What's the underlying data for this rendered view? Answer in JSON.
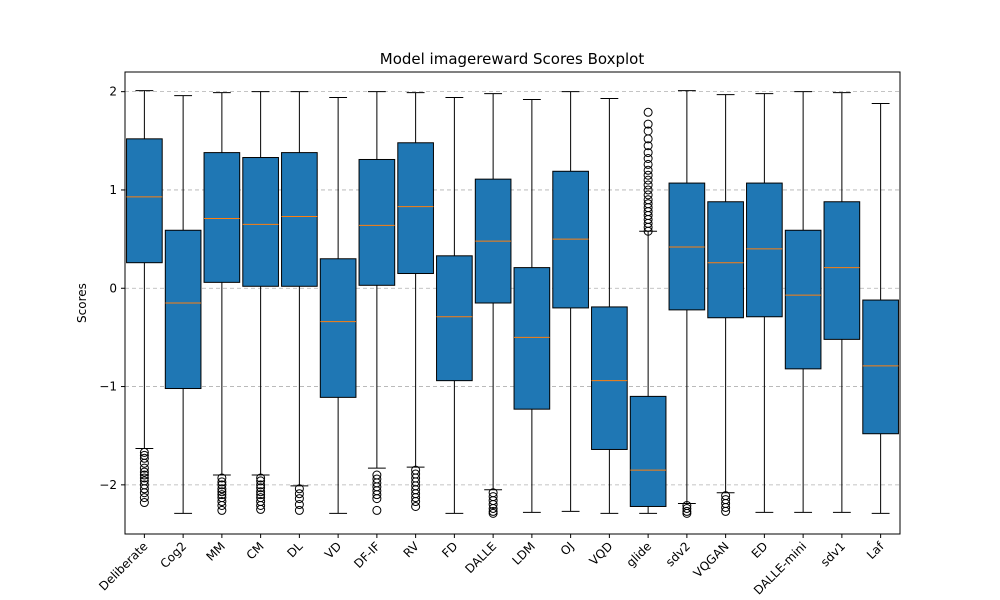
{
  "chart_data": {
    "type": "boxplot",
    "title": "Model imagereward Scores Boxplot",
    "xlabel": "",
    "ylabel": "Scores",
    "ylim": [
      -2.5,
      2.2
    ],
    "yticks": [
      -2,
      -1,
      0,
      1,
      2
    ],
    "grid": "y-dashed",
    "colors": {
      "box_fill": "#1f77b4",
      "median": "#ff7f0e",
      "grid": "#b0b0b0"
    },
    "categories": [
      "Deliberate",
      "Cog2",
      "MM",
      "CM",
      "DL",
      "VD",
      "DF-IF",
      "RV",
      "FD",
      "DALLE",
      "LDM",
      "OJ",
      "VQD",
      "glide",
      "sdv2",
      "VQGAN",
      "ED",
      "DALLE-mini",
      "sdv1",
      "Laf"
    ],
    "boxes": [
      {
        "name": "Deliberate",
        "whislo": -1.63,
        "q1": 0.26,
        "median": 0.93,
        "q3": 1.52,
        "whishi": 2.01,
        "fliers": [
          -1.67,
          -1.7,
          -1.73,
          -1.78,
          -1.83,
          -1.87,
          -1.9,
          -1.93,
          -1.96,
          -2.0,
          -2.04,
          -2.08,
          -2.13,
          -2.18
        ]
      },
      {
        "name": "Cog2",
        "whislo": -2.29,
        "q1": -1.02,
        "median": -0.15,
        "q3": 0.59,
        "whishi": 1.96,
        "fliers": []
      },
      {
        "name": "MM",
        "whislo": -1.9,
        "q1": 0.06,
        "median": 0.71,
        "q3": 1.38,
        "whishi": 1.99,
        "fliers": [
          -1.93,
          -1.97,
          -2.0,
          -2.04,
          -2.07,
          -2.1,
          -2.13,
          -2.17,
          -2.21,
          -2.26
        ]
      },
      {
        "name": "CM",
        "whislo": -1.9,
        "q1": 0.02,
        "median": 0.65,
        "q3": 1.33,
        "whishi": 2.0,
        "fliers": [
          -1.93,
          -1.96,
          -2.0,
          -2.03,
          -2.07,
          -2.1,
          -2.13,
          -2.17,
          -2.21,
          -2.25
        ]
      },
      {
        "name": "DL",
        "whislo": -2.01,
        "q1": 0.02,
        "median": 0.73,
        "q3": 1.38,
        "whishi": 2.0,
        "fliers": [
          -2.04,
          -2.09,
          -2.14,
          -2.2,
          -2.26
        ]
      },
      {
        "name": "VD",
        "whislo": -2.29,
        "q1": -1.11,
        "median": -0.34,
        "q3": 0.3,
        "whishi": 1.94,
        "fliers": []
      },
      {
        "name": "DF-IF",
        "whislo": -1.83,
        "q1": 0.03,
        "median": 0.64,
        "q3": 1.31,
        "whishi": 2.0,
        "fliers": [
          -1.9,
          -1.94,
          -1.98,
          -2.02,
          -2.06,
          -2.1,
          -2.14,
          -2.26
        ]
      },
      {
        "name": "RV",
        "whislo": -1.82,
        "q1": 0.15,
        "median": 0.83,
        "q3": 1.48,
        "whishi": 1.99,
        "fliers": [
          -1.85,
          -1.89,
          -1.93,
          -1.97,
          -2.01,
          -2.05,
          -2.09,
          -2.13,
          -2.17,
          -2.22
        ]
      },
      {
        "name": "FD",
        "whislo": -2.29,
        "q1": -0.94,
        "median": -0.29,
        "q3": 0.33,
        "whishi": 1.94,
        "fliers": []
      },
      {
        "name": "DALLE",
        "whislo": -2.05,
        "q1": -0.15,
        "median": 0.48,
        "q3": 1.11,
        "whishi": 1.98,
        "fliers": [
          -2.08,
          -2.12,
          -2.16,
          -2.2,
          -2.24,
          -2.27,
          -2.29
        ]
      },
      {
        "name": "LDM",
        "whislo": -2.28,
        "q1": -1.23,
        "median": -0.5,
        "q3": 0.21,
        "whishi": 1.92,
        "fliers": []
      },
      {
        "name": "OJ",
        "whislo": -2.27,
        "q1": -0.2,
        "median": 0.5,
        "q3": 1.19,
        "whishi": 2.0,
        "fliers": []
      },
      {
        "name": "VQD",
        "whislo": -2.29,
        "q1": -1.64,
        "median": -0.94,
        "q3": -0.19,
        "whishi": 1.93,
        "fliers": []
      },
      {
        "name": "glide",
        "whislo": -2.29,
        "q1": -2.22,
        "median": -1.85,
        "q3": -1.1,
        "whishi": 0.58,
        "fliers": [
          0.58,
          0.62,
          0.66,
          0.7,
          0.74,
          0.78,
          0.82,
          0.86,
          0.9,
          0.95,
          1.0,
          1.05,
          1.1,
          1.15,
          1.2,
          1.26,
          1.32,
          1.38,
          1.45,
          1.52,
          1.6,
          1.67,
          1.79
        ]
      },
      {
        "name": "sdv2",
        "whislo": -2.19,
        "q1": -0.22,
        "median": 0.42,
        "q3": 1.07,
        "whishi": 2.01,
        "fliers": [
          -2.21,
          -2.24,
          -2.27,
          -2.29
        ]
      },
      {
        "name": "VQGAN",
        "whislo": -2.08,
        "q1": -0.3,
        "median": 0.26,
        "q3": 0.88,
        "whishi": 1.97,
        "fliers": [
          -2.11,
          -2.15,
          -2.19,
          -2.23,
          -2.27
        ]
      },
      {
        "name": "ED",
        "whislo": -2.28,
        "q1": -0.29,
        "median": 0.4,
        "q3": 1.07,
        "whishi": 1.98,
        "fliers": []
      },
      {
        "name": "DALLE-mini",
        "whislo": -2.28,
        "q1": -0.82,
        "median": -0.07,
        "q3": 0.59,
        "whishi": 2.0,
        "fliers": []
      },
      {
        "name": "sdv1",
        "whislo": -2.28,
        "q1": -0.52,
        "median": 0.21,
        "q3": 0.88,
        "whishi": 1.99,
        "fliers": []
      },
      {
        "name": "Laf",
        "whislo": -2.29,
        "q1": -1.48,
        "median": -0.79,
        "q3": -0.12,
        "whishi": 1.88,
        "fliers": []
      }
    ]
  }
}
